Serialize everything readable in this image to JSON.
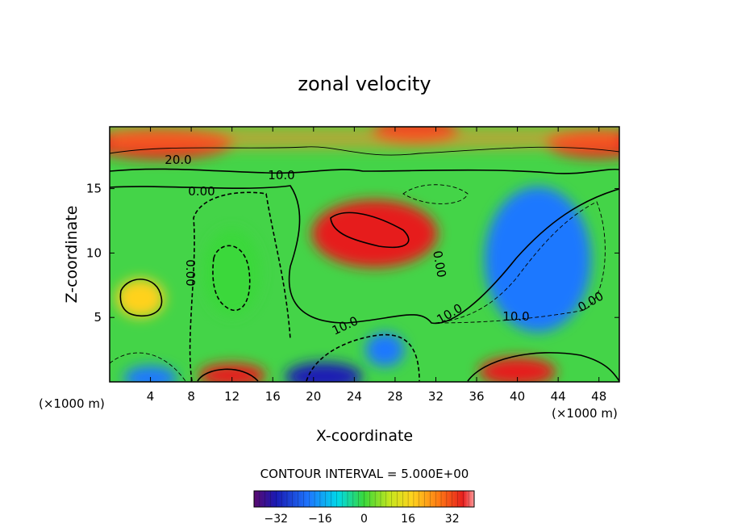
{
  "chart_data": {
    "type": "heatmap",
    "title": "zonal velocity",
    "xlabel": "X-coordinate",
    "ylabel": "Z-coordinate",
    "x_unit_left": "(×1000 m)",
    "x_unit_right": "(×1000 m)",
    "xlim": [
      0,
      50
    ],
    "ylim": [
      0,
      19.8
    ],
    "x_ticks": [
      "4",
      "8",
      "12",
      "16",
      "20",
      "24",
      "28",
      "32",
      "36",
      "40",
      "44",
      "48"
    ],
    "y_ticks": [
      "5",
      "10",
      "15"
    ],
    "contour_interval_text": "CONTOUR INTERVAL = 5.000E+00",
    "colorbar": {
      "range": [
        -40,
        40
      ],
      "tick_labels": [
        "−32",
        "−16",
        "0",
        "16",
        "32"
      ]
    },
    "contour_labels": [
      "20.0",
      "10.0",
      "0.00",
      "0.00",
      "10.0",
      "0.00",
      "10.0",
      "10.0",
      "0.00"
    ],
    "features": [
      {
        "x": 5,
        "z": 18.5,
        "value": 30
      },
      {
        "x": 30,
        "z": 19.5,
        "value": 34
      },
      {
        "x": 48,
        "z": 18.5,
        "value": 30
      },
      {
        "x": 26,
        "z": 11.5,
        "value": 28
      },
      {
        "x": 12,
        "z": 8.5,
        "value": -8
      },
      {
        "x": 42,
        "z": 9.5,
        "value": -20
      },
      {
        "x": 3,
        "z": 6.5,
        "value": 12
      },
      {
        "x": 21,
        "z": 0.4,
        "value": -34
      },
      {
        "x": 27,
        "z": 2.5,
        "value": -24
      },
      {
        "x": 12,
        "z": 0.5,
        "value": 32
      },
      {
        "x": 40,
        "z": 0.8,
        "value": 30
      },
      {
        "x": 4,
        "z": 0.3,
        "value": -28
      }
    ]
  }
}
